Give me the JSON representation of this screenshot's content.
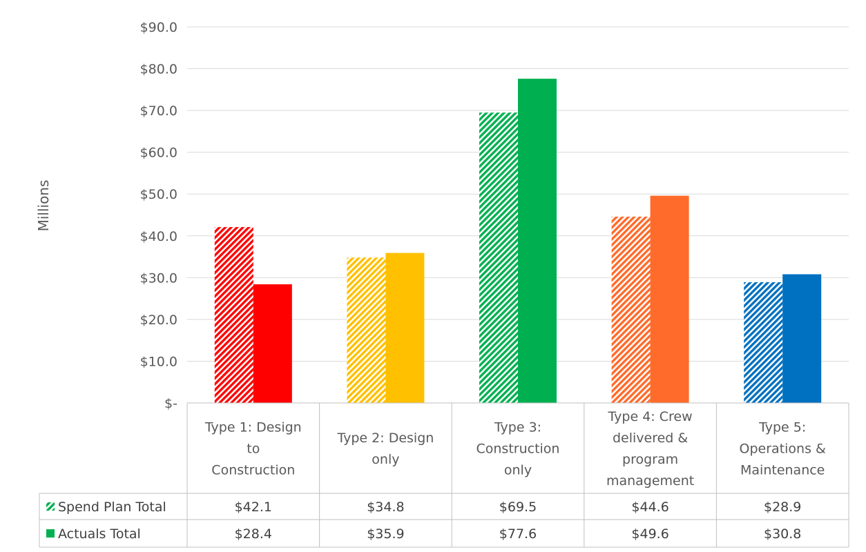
{
  "chart_data": {
    "type": "bar",
    "ylabel": "Millions",
    "ylim": [
      0,
      90
    ],
    "ytick_labels": [
      "$-",
      "$10.0",
      "$20.0",
      "$30.0",
      "$40.0",
      "$50.0",
      "$60.0",
      "$70.0",
      "$80.0",
      "$90.0"
    ],
    "grid": true,
    "categories": [
      [
        "Type 1: Design",
        "to",
        "Construction"
      ],
      [
        "Type 2: Design",
        "only"
      ],
      [
        "Type 3:",
        "Construction",
        "only"
      ],
      [
        "Type 4: Crew",
        "delivered &",
        "program",
        "management"
      ],
      [
        "Type 5:",
        "Operations &",
        "Maintenance"
      ]
    ],
    "category_colors": [
      "#ff0000",
      "#ffc000",
      "#00b050",
      "#ff6b2b",
      "#0070c0"
    ],
    "legend_placement": "data table below chart",
    "legend_colors": [
      "#00b050",
      "#00b050"
    ],
    "series": [
      {
        "name": "Spend Plan Total",
        "style": "hatched",
        "values": [
          42.1,
          34.8,
          69.5,
          44.6,
          28.9
        ],
        "labels": [
          "$42.1",
          "$34.8",
          "$69.5",
          "$44.6",
          "$28.9"
        ]
      },
      {
        "name": "Actuals Total",
        "style": "solid",
        "values": [
          28.4,
          35.9,
          77.6,
          49.6,
          30.8
        ],
        "labels": [
          "$28.4",
          "$35.9",
          "$77.6",
          "$49.6",
          "$30.8"
        ]
      }
    ]
  }
}
